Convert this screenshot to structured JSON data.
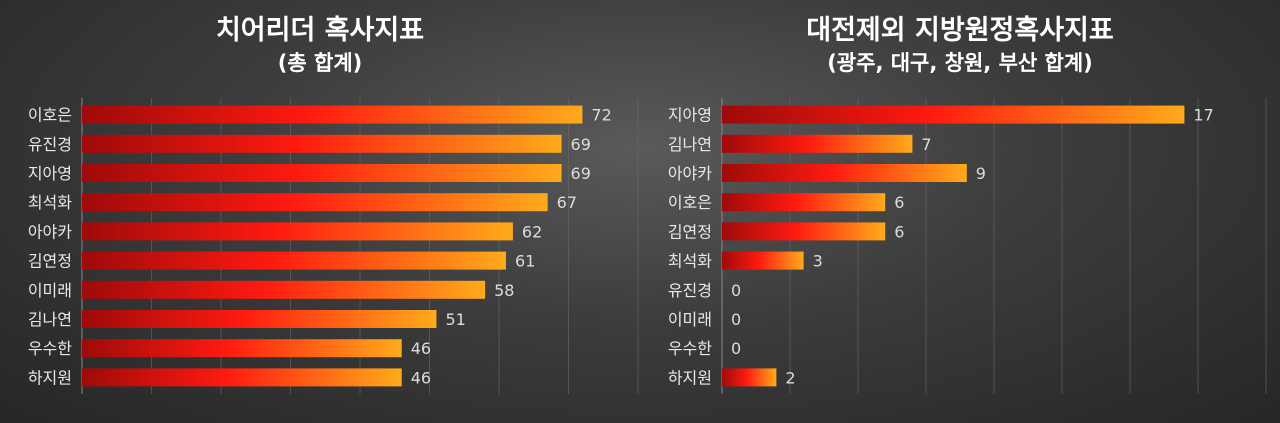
{
  "chart_data": [
    {
      "type": "bar",
      "orientation": "horizontal",
      "title": "치어리더 혹사지표",
      "subtitle": "(총 합계)",
      "categories": [
        "이호은",
        "유진경",
        "지아영",
        "최석화",
        "아야카",
        "김연정",
        "이미래",
        "김나연",
        "우수한",
        "하지원"
      ],
      "values": [
        72,
        69,
        69,
        67,
        62,
        61,
        58,
        51,
        46,
        46
      ],
      "xlim": [
        0,
        80
      ],
      "grid": true,
      "bar_gradient": [
        "#9e0a0a",
        "#ff1a10",
        "#ffab1a"
      ]
    },
    {
      "type": "bar",
      "orientation": "horizontal",
      "title": "대전제외 지방원정혹사지표",
      "subtitle": "(광주, 대구, 창원, 부산 합계)",
      "categories": [
        "지아영",
        "김나연",
        "아야카",
        "이호은",
        "김연정",
        "최석화",
        "유진경",
        "이미래",
        "우수한",
        "하지원"
      ],
      "values": [
        17,
        7,
        9,
        6,
        6,
        3,
        0,
        0,
        0,
        2
      ],
      "xlim": [
        0,
        20
      ],
      "grid": true,
      "bar_gradient": [
        "#9e0a0a",
        "#ff1a10",
        "#ffab1a"
      ]
    }
  ]
}
